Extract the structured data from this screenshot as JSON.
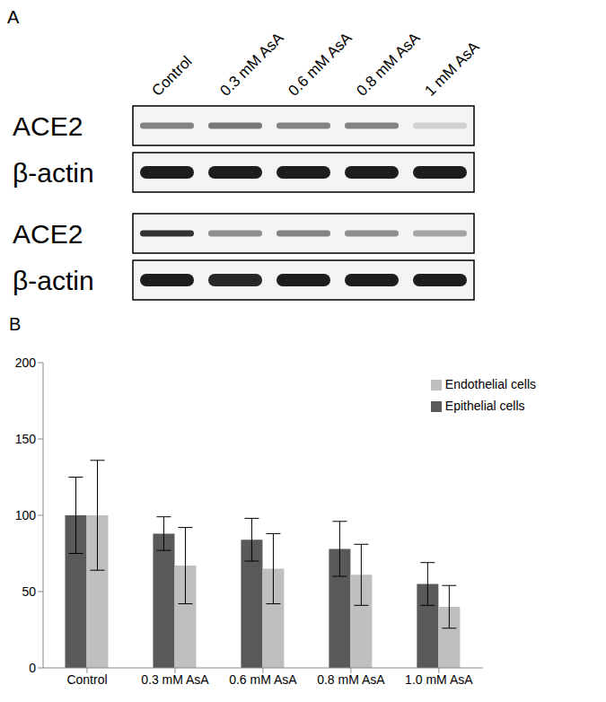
{
  "blot": {
    "panel": "A",
    "lanes": [
      "Control",
      "0.3 mM AsA",
      "0.6 mM AsA",
      "0.8 mM AsA",
      "1 mM AsA"
    ],
    "groups": [
      {
        "rows": [
          {
            "label": "ACE2",
            "intensity": [
              0.5,
              0.55,
              0.5,
              0.5,
              0.15
            ]
          },
          {
            "label": "β-actin",
            "intensity": [
              0.95,
              0.95,
              0.95,
              0.95,
              0.95
            ]
          }
        ]
      },
      {
        "rows": [
          {
            "label": "ACE2",
            "intensity": [
              0.85,
              0.45,
              0.5,
              0.45,
              0.35
            ]
          },
          {
            "label": "β-actin",
            "intensity": [
              0.95,
              0.9,
              0.95,
              0.95,
              0.95
            ]
          }
        ]
      }
    ]
  },
  "chart_data": {
    "type": "bar",
    "title": "B",
    "categories": [
      "Control",
      "0.3 mM AsA",
      "0.6 mM AsA",
      "0.8 mM AsA",
      "1.0 mM AsA"
    ],
    "series": [
      {
        "name": "Epithelial cells",
        "color": "#595959",
        "values": [
          100,
          88,
          84,
          78,
          55
        ],
        "errors": [
          25,
          11,
          14,
          18,
          14
        ]
      },
      {
        "name": "Endothelial cells",
        "color": "#bfbfbf",
        "values": [
          100,
          67,
          65,
          61,
          40
        ],
        "errors": [
          36,
          25,
          23,
          20,
          14
        ]
      }
    ],
    "ylim": [
      0,
      200
    ],
    "yticks": [
      0,
      50,
      100,
      150,
      200
    ],
    "grid": false,
    "legend": "upper right"
  }
}
